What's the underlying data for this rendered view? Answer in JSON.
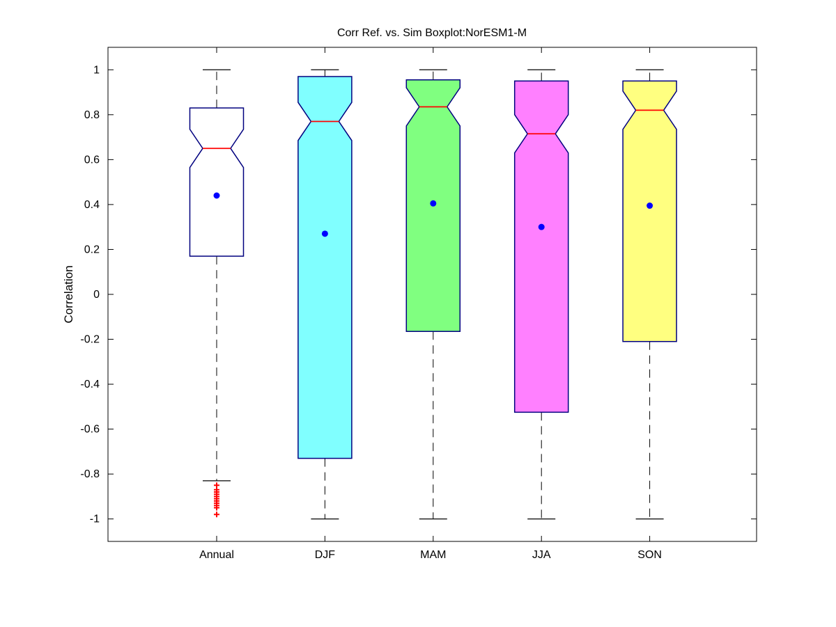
{
  "chart_data": {
    "type": "boxplot",
    "title": "Corr Ref. vs. Sim Boxplot:NorESM1-M",
    "xlabel": "",
    "ylabel": "Correlation",
    "ylim": [
      -1.1,
      1.1
    ],
    "yticks": [
      -1,
      -0.8,
      -0.6,
      -0.4,
      -0.2,
      0,
      0.2,
      0.4,
      0.6,
      0.8,
      1
    ],
    "ytick_labels": [
      "-1",
      "-0.8",
      "-0.6",
      "-0.4",
      "-0.2",
      "0",
      "0.2",
      "0.4",
      "0.6",
      "0.8",
      "1"
    ],
    "categories": [
      "Annual",
      "DJF",
      "MAM",
      "JJA",
      "SON"
    ],
    "grid": false,
    "notched": true,
    "boxes": [
      {
        "category": "Annual",
        "whisker_low": -0.83,
        "q1": 0.17,
        "median": 0.65,
        "q3": 0.83,
        "whisker_high": 1.0,
        "mean": 0.44,
        "fill": "#ffffff",
        "outliers": [
          -0.85,
          -0.87,
          -0.88,
          -0.89,
          -0.9,
          -0.91,
          -0.92,
          -0.93,
          -0.94,
          -0.95,
          -0.98
        ]
      },
      {
        "category": "DJF",
        "whisker_low": -1.0,
        "q1": -0.73,
        "median": 0.77,
        "q3": 0.97,
        "whisker_high": 1.0,
        "mean": 0.27,
        "fill": "#80ffff",
        "outliers": []
      },
      {
        "category": "MAM",
        "whisker_low": -1.0,
        "q1": -0.165,
        "median": 0.835,
        "q3": 0.955,
        "whisker_high": 1.0,
        "mean": 0.405,
        "fill": "#80ff80",
        "outliers": []
      },
      {
        "category": "JJA",
        "whisker_low": -1.0,
        "q1": -0.525,
        "median": 0.715,
        "q3": 0.95,
        "whisker_high": 1.0,
        "mean": 0.3,
        "fill": "#ff80ff",
        "outliers": []
      },
      {
        "category": "SON",
        "whisker_low": -1.0,
        "q1": -0.21,
        "median": 0.82,
        "q3": 0.95,
        "whisker_high": 1.0,
        "mean": 0.395,
        "fill": "#ffff80",
        "outliers": []
      }
    ],
    "colors": {
      "box_edge": "#00007f",
      "median": "#ff0000",
      "whisker": "#000000",
      "mean_marker": "#0000ff",
      "outlier": "#ff0000"
    }
  }
}
